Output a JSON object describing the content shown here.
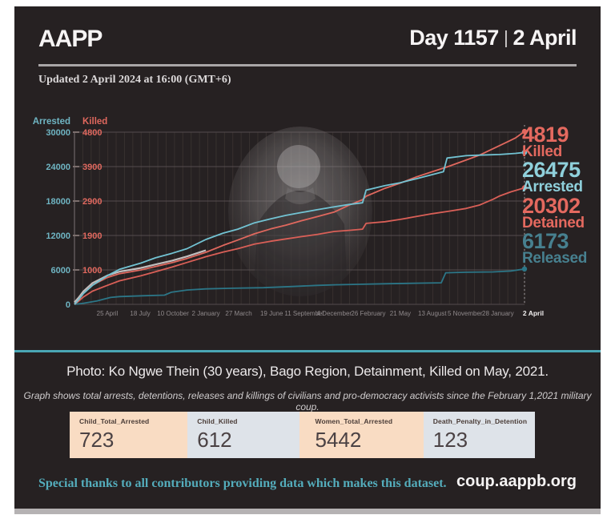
{
  "header": {
    "logo": "AAPP",
    "day": "Day 1157",
    "separator": "|",
    "date": "2 April",
    "updated": "Updated 2 April 2024 at 16:00 (GMT+6)"
  },
  "colors": {
    "background": "#262122",
    "accent_teal": "#4aa7b5",
    "bright_teal": "#8fd0db",
    "salmon_red": "#e0685e",
    "muted_teal": "#47808f",
    "peach": "#f9dcc3",
    "gray_blue": "#dee3e9"
  },
  "chart_data": {
    "type": "line",
    "left_axis": {
      "label": "Arrested",
      "color": "#6fb5c3",
      "ticks": [
        0,
        6000,
        12000,
        18000,
        24000,
        30000
      ],
      "max": 30000
    },
    "killed_axis": {
      "label": "Killed",
      "color": "#e0685e",
      "ticks": [
        1000,
        1900,
        2900,
        3900,
        4800
      ]
    },
    "x_ticks": [
      "25 April",
      "18 July",
      "10 October",
      "2 January",
      "27 March",
      "19 June",
      "11 September",
      "4 December",
      "26 February",
      "21 May",
      "13 August",
      "5 November",
      "28 January"
    ],
    "x_end_label": "2 April",
    "grid": true,
    "series": [
      {
        "name": "Released",
        "axis": "arrested",
        "color": "#2c7687",
        "total": 6173,
        "points": [
          [
            0,
            0
          ],
          [
            0.02,
            200
          ],
          [
            0.05,
            600
          ],
          [
            0.08,
            1200
          ],
          [
            0.1,
            1350
          ],
          [
            0.15,
            1500
          ],
          [
            0.2,
            1600
          ],
          [
            0.215,
            2100
          ],
          [
            0.25,
            2500
          ],
          [
            0.292,
            2700
          ],
          [
            0.35,
            2800
          ],
          [
            0.42,
            2900
          ],
          [
            0.48,
            3100
          ],
          [
            0.54,
            3300
          ],
          [
            0.577,
            3400
          ],
          [
            0.64,
            3500
          ],
          [
            0.7,
            3600
          ],
          [
            0.77,
            3700
          ],
          [
            0.815,
            3750
          ],
          [
            0.825,
            5500
          ],
          [
            0.87,
            5600
          ],
          [
            0.93,
            5650
          ],
          [
            0.97,
            5800
          ],
          [
            1,
            6173
          ]
        ]
      },
      {
        "name": "Detained",
        "axis": "arrested",
        "color": "#d95f57",
        "total": 20302,
        "points": [
          [
            0,
            0
          ],
          [
            0.01,
            600
          ],
          [
            0.02,
            1300
          ],
          [
            0.04,
            2300
          ],
          [
            0.073,
            3300
          ],
          [
            0.1,
            4100
          ],
          [
            0.148,
            5000
          ],
          [
            0.18,
            5700
          ],
          [
            0.217,
            6500
          ],
          [
            0.25,
            7300
          ],
          [
            0.292,
            8300
          ],
          [
            0.33,
            9100
          ],
          [
            0.363,
            9700
          ],
          [
            0.4,
            10500
          ],
          [
            0.436,
            11000
          ],
          [
            0.47,
            11400
          ],
          [
            0.505,
            11800
          ],
          [
            0.54,
            12200
          ],
          [
            0.577,
            12700
          ],
          [
            0.61,
            12900
          ],
          [
            0.64,
            13100
          ],
          [
            0.648,
            14100
          ],
          [
            0.69,
            14400
          ],
          [
            0.724,
            14800
          ],
          [
            0.76,
            15300
          ],
          [
            0.795,
            15800
          ],
          [
            0.83,
            16200
          ],
          [
            0.87,
            16700
          ],
          [
            0.9,
            17300
          ],
          [
            0.93,
            18300
          ],
          [
            0.945,
            18900
          ],
          [
            0.97,
            19600
          ],
          [
            1,
            20302
          ]
        ]
      },
      {
        "name": "Killed",
        "axis": "killed",
        "color": "#e0685e",
        "total": 4819,
        "points": [
          [
            0,
            0
          ],
          [
            0.01,
            150
          ],
          [
            0.02,
            320
          ],
          [
            0.04,
            560
          ],
          [
            0.073,
            780
          ],
          [
            0.1,
            890
          ],
          [
            0.148,
            1000
          ],
          [
            0.18,
            1090
          ],
          [
            0.217,
            1190
          ],
          [
            0.25,
            1300
          ],
          [
            0.292,
            1460
          ],
          [
            0.33,
            1640
          ],
          [
            0.363,
            1780
          ],
          [
            0.4,
            1950
          ],
          [
            0.436,
            2090
          ],
          [
            0.47,
            2200
          ],
          [
            0.505,
            2330
          ],
          [
            0.54,
            2450
          ],
          [
            0.577,
            2580
          ],
          [
            0.61,
            2780
          ],
          [
            0.64,
            2940
          ],
          [
            0.648,
            3040
          ],
          [
            0.69,
            3270
          ],
          [
            0.724,
            3420
          ],
          [
            0.76,
            3600
          ],
          [
            0.795,
            3750
          ],
          [
            0.83,
            3900
          ],
          [
            0.87,
            4070
          ],
          [
            0.9,
            4200
          ],
          [
            0.945,
            4450
          ],
          [
            0.98,
            4650
          ],
          [
            1,
            4819
          ]
        ]
      },
      {
        "name": "Arrested",
        "axis": "arrested",
        "color": "#72c3d3",
        "total": 26475,
        "points": [
          [
            0,
            0
          ],
          [
            0.01,
            900
          ],
          [
            0.02,
            1900
          ],
          [
            0.04,
            3300
          ],
          [
            0.073,
            5000
          ],
          [
            0.1,
            6100
          ],
          [
            0.148,
            7200
          ],
          [
            0.18,
            8100
          ],
          [
            0.217,
            8900
          ],
          [
            0.25,
            9700
          ],
          [
            0.292,
            11300
          ],
          [
            0.33,
            12400
          ],
          [
            0.363,
            13100
          ],
          [
            0.4,
            14200
          ],
          [
            0.436,
            14900
          ],
          [
            0.47,
            15500
          ],
          [
            0.505,
            16000
          ],
          [
            0.54,
            16500
          ],
          [
            0.577,
            17000
          ],
          [
            0.61,
            17400
          ],
          [
            0.64,
            17700
          ],
          [
            0.648,
            19900
          ],
          [
            0.69,
            20700
          ],
          [
            0.724,
            21200
          ],
          [
            0.76,
            21900
          ],
          [
            0.795,
            22600
          ],
          [
            0.82,
            23100
          ],
          [
            0.828,
            25500
          ],
          [
            0.87,
            25900
          ],
          [
            0.9,
            26000
          ],
          [
            0.945,
            26100
          ],
          [
            0.98,
            26300
          ],
          [
            1,
            26475
          ]
        ]
      }
    ],
    "end_stats": [
      {
        "value": "4819",
        "label": "Killed",
        "color": "#e4695f"
      },
      {
        "value": "26475",
        "label": "Arrested",
        "color": "#8fd0db"
      },
      {
        "value": "20302",
        "label": "Detained",
        "color": "#e4695f"
      },
      {
        "value": "6173",
        "label": "Released",
        "color": "#47808f"
      }
    ]
  },
  "caption": {
    "photo": "Photo: Ko Ngwe Thein (30 years), Bago Region, Detainment, Killed on May, 2021.",
    "description": "Graph shows total arrests, detentions, releases and killings of civilians and pro-democracy activists since the February 1,2021 military coup."
  },
  "stats": [
    {
      "label": "Child_Total_Arrested",
      "value": "723"
    },
    {
      "label": "Child_Killed",
      "value": "612"
    },
    {
      "label": "Women_Total_Arrested",
      "value": "5442"
    },
    {
      "label": "Death_Penalty_in_Detention",
      "value": "123"
    }
  ],
  "footer": {
    "thanks": "Special thanks to all contributors providing data which makes this dataset.",
    "site": "coup.aappb.org"
  }
}
